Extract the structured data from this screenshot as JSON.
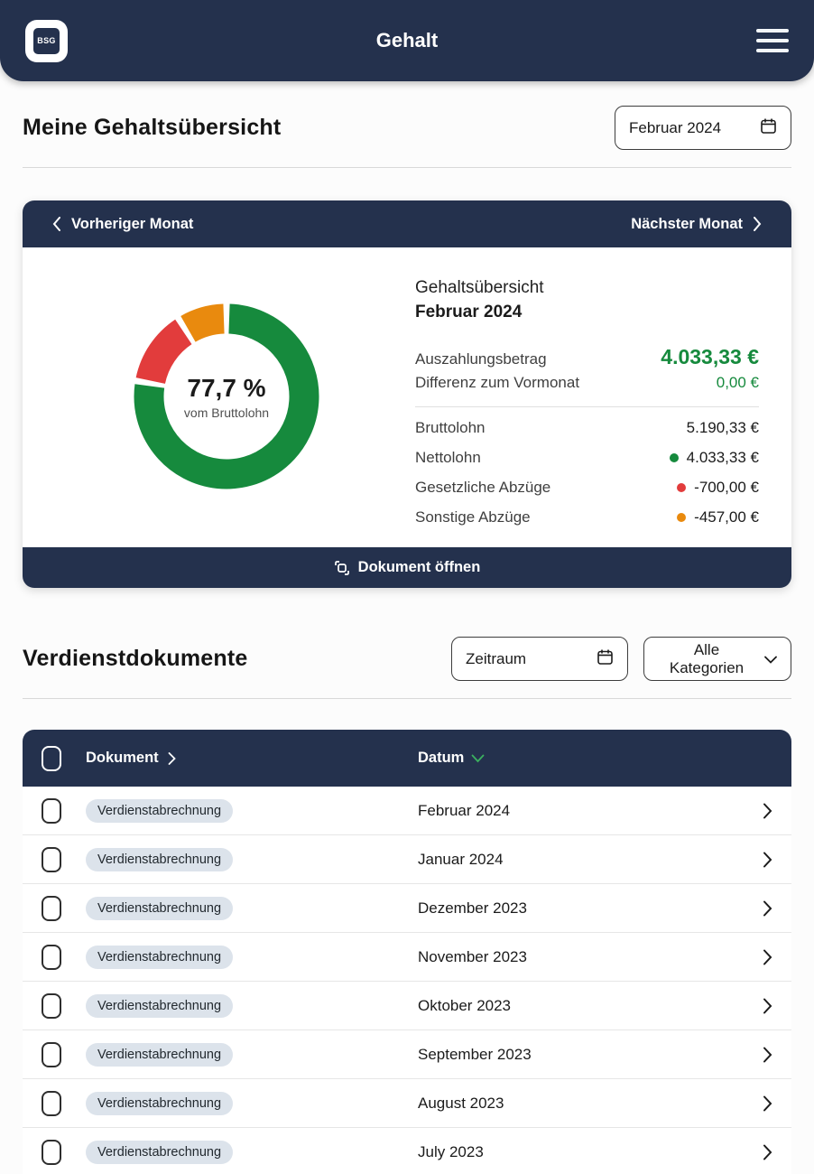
{
  "header": {
    "logo_text": "BSG",
    "title": "Gehalt"
  },
  "overview": {
    "heading": "Meine Gehaltsübersicht",
    "month_picker_value": "Februar 2024",
    "card": {
      "prev_label": "Vorheriger Monat",
      "next_label": "Nächster Monat",
      "title": "Gehaltsübersicht",
      "month": "Februar 2024",
      "payout_label": "Auszahlungsbetrag",
      "payout_value": "4.033,33 €",
      "diff_label": "Differenz zum Vormonat",
      "diff_value": "0,00 €",
      "rows": [
        {
          "label": "Bruttolohn",
          "value": "5.190,33 €",
          "dot": ""
        },
        {
          "label": "Nettolohn",
          "value": "4.033,33 €",
          "dot": "#168a3d"
        },
        {
          "label": "Gesetzliche Abzüge",
          "value": "-700,00 €",
          "dot": "#e23c3c"
        },
        {
          "label": "Sonstige Abzüge",
          "value": "-457,00 €",
          "dot": "#e98a0e"
        }
      ],
      "open_document_label": "Dokument öffnen"
    }
  },
  "chart_data": {
    "type": "pie",
    "subtype": "donut",
    "center_value": "77,7 %",
    "center_label": "vom Bruttolohn",
    "segments": [
      {
        "name": "Nettolohn",
        "value": 77.7,
        "color": "#168a3d"
      },
      {
        "name": "Gesetzliche Abzüge",
        "value": 13.5,
        "color": "#e23c3c"
      },
      {
        "name": "Sonstige Abzüge",
        "value": 8.8,
        "color": "#e98a0e"
      }
    ],
    "legend_position": "none",
    "start_angle_deg": 0
  },
  "documents": {
    "heading": "Verdienstdokumente",
    "period_filter_label": "Zeitraum",
    "category_filter_value": "Alle Kategorien",
    "table": {
      "col_document": "Dokument",
      "col_date": "Datum",
      "sort_column": "Datum",
      "rows": [
        {
          "badge": "Verdienstabrechnung",
          "date": "Februar 2024"
        },
        {
          "badge": "Verdienstabrechnung",
          "date": "Januar 2024"
        },
        {
          "badge": "Verdienstabrechnung",
          "date": "Dezember 2023"
        },
        {
          "badge": "Verdienstabrechnung",
          "date": "November 2023"
        },
        {
          "badge": "Verdienstabrechnung",
          "date": "Oktober 2023"
        },
        {
          "badge": "Verdienstabrechnung",
          "date": "September 2023"
        },
        {
          "badge": "Verdienstabrechnung",
          "date": "August 2023"
        },
        {
          "badge": "Verdienstabrechnung",
          "date": "July 2023"
        }
      ]
    }
  },
  "colors": {
    "navy": "#24314d",
    "green": "#168a3d",
    "red": "#e23c3c",
    "orange": "#e98a0e",
    "badge_bg": "#dce3eb"
  }
}
